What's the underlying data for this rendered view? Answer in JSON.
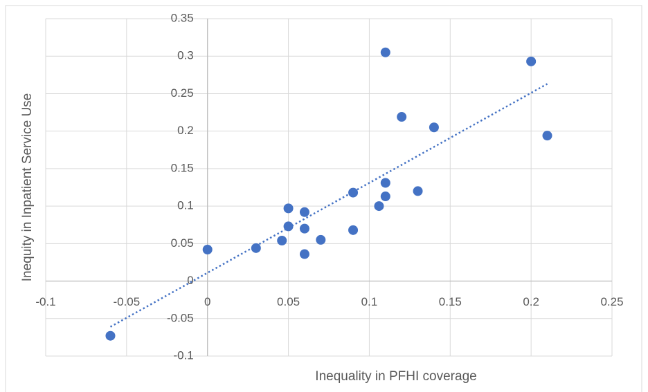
{
  "chart_data": {
    "type": "scatter",
    "x_label": "Inequality in PFHI coverage",
    "y_label": "Inequity in Inpatient Service Use",
    "series": [
      {
        "color": "#4472c4",
        "x": [
          -0.06,
          0,
          0.03,
          0.046,
          0.05,
          0.05,
          0.06,
          0.06,
          0.06,
          0.07,
          0.09,
          0.09,
          0.106,
          0.11,
          0.11,
          0.11,
          0.12,
          0.13,
          0.14,
          0.2,
          0.21
        ],
        "values": [
          -0.073,
          0.042,
          0.044,
          0.054,
          0.097,
          0.073,
          0.092,
          0.07,
          0.036,
          0.055,
          0.118,
          0.068,
          0.1,
          0.131,
          0.113,
          0.305,
          0.219,
          0.12,
          0.205,
          0.293,
          0.194
        ]
      }
    ],
    "trendline": {
      "color": "#4472c4",
      "x": [
        -0.06,
        0.21
      ],
      "values": [
        -0.061,
        0.263
      ]
    },
    "xlim": [
      -0.1,
      0.25
    ],
    "xticks": [
      -0.1,
      -0.05,
      0,
      0.05,
      0.1,
      0.15,
      0.2,
      0.25
    ],
    "ylim": [
      -0.1,
      0.35
    ],
    "yticks": [
      -0.1,
      -0.05,
      0,
      0.05,
      0.1,
      0.15,
      0.2,
      0.25,
      0.3,
      0.35
    ],
    "grid": true
  }
}
